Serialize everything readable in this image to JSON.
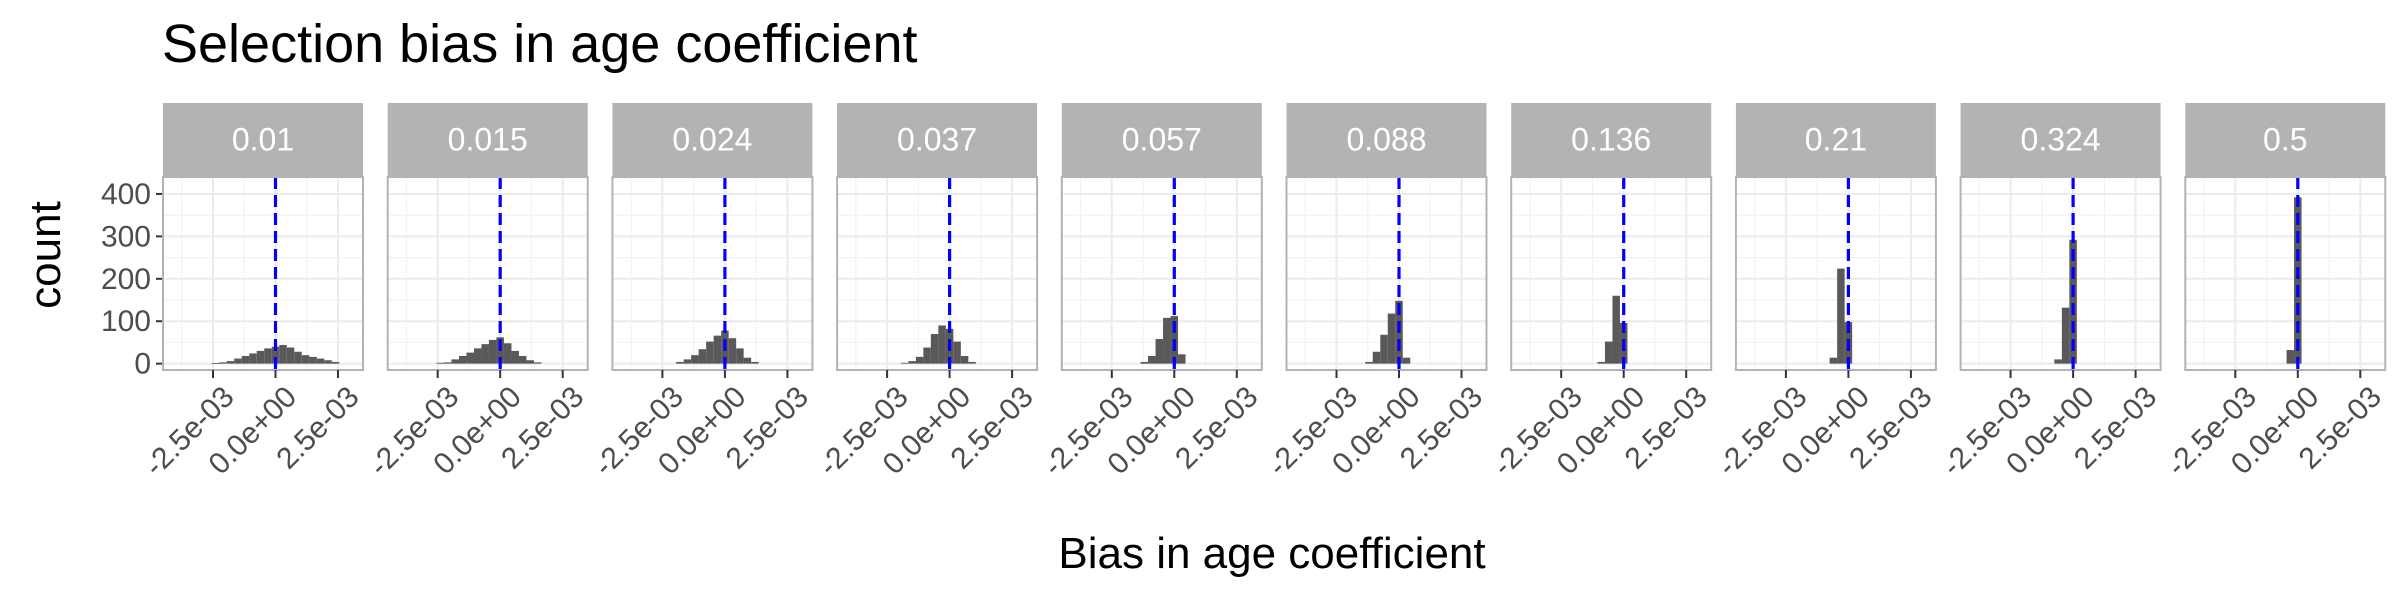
{
  "chart_data": {
    "type": "bar",
    "title": "Selection bias in age coefficient",
    "xlabel": "Bias in age coefficient",
    "ylabel": "count",
    "xlim": [
      -0.0045,
      0.0035
    ],
    "ylim": [
      -15,
      440
    ],
    "x_tick_values": [
      -0.0025,
      0.0,
      0.0025
    ],
    "x_tick_labels": [
      "-2.5e-03",
      "0.0e+00",
      "2.5e-03"
    ],
    "y_tick_values": [
      0,
      100,
      200,
      300,
      400
    ],
    "y_tick_labels": [
      "0",
      "100",
      "200",
      "300",
      "400"
    ],
    "bin_width": 0.0003,
    "reference_line": {
      "x": 0.0,
      "color": "#0000ff",
      "style": "dashed"
    },
    "colors": {
      "bar": "#595959",
      "strip": "#b3b3b3",
      "panel_border": "#b3b3b3",
      "grid": "#ebebeb"
    },
    "grid": true,
    "legend": "none",
    "panels": [
      {
        "label": "0.01",
        "x": [
          -0.0024,
          -0.0021,
          -0.0018,
          -0.0015,
          -0.0012,
          -0.0009,
          -0.0006,
          -0.0003,
          0.0,
          0.0003,
          0.0006,
          0.0009,
          0.0012,
          0.0015,
          0.0018,
          0.0021,
          0.0024
        ],
        "values": [
          1,
          3,
          6,
          12,
          18,
          24,
          30,
          36,
          40,
          44,
          38,
          28,
          20,
          16,
          12,
          8,
          4
        ]
      },
      {
        "label": "0.015",
        "x": [
          -0.0024,
          -0.0021,
          -0.0018,
          -0.0015,
          -0.0012,
          -0.0009,
          -0.0006,
          -0.0003,
          0.0,
          0.0003,
          0.0006,
          0.0009,
          0.0012,
          0.0015
        ],
        "values": [
          2,
          3,
          10,
          18,
          26,
          36,
          46,
          56,
          62,
          48,
          30,
          18,
          8,
          3
        ]
      },
      {
        "label": "0.024",
        "x": [
          -0.0018,
          -0.0015,
          -0.0012,
          -0.0009,
          -0.0006,
          -0.0003,
          0.0,
          0.0003,
          0.0006,
          0.0009,
          0.0012
        ],
        "values": [
          4,
          10,
          20,
          34,
          52,
          66,
          78,
          60,
          36,
          14,
          4
        ]
      },
      {
        "label": "0.037",
        "x": [
          -0.0018,
          -0.0015,
          -0.0012,
          -0.0009,
          -0.0006,
          -0.0003,
          0.0,
          0.0003,
          0.0006,
          0.0009
        ],
        "values": [
          2,
          6,
          16,
          38,
          70,
          90,
          82,
          52,
          18,
          4
        ]
      },
      {
        "label": "0.057",
        "x": [
          -0.0012,
          -0.0009,
          -0.0006,
          -0.0003,
          0.0,
          0.0003
        ],
        "values": [
          4,
          18,
          58,
          108,
          112,
          22
        ]
      },
      {
        "label": "0.088",
        "x": [
          -0.0012,
          -0.0009,
          -0.0006,
          -0.0003,
          0.0,
          0.0003
        ],
        "values": [
          4,
          28,
          68,
          118,
          148,
          14
        ]
      },
      {
        "label": "0.136",
        "x": [
          -0.0009,
          -0.0006,
          -0.0003,
          0.0
        ],
        "values": [
          4,
          52,
          160,
          96
        ]
      },
      {
        "label": "0.21",
        "x": [
          -0.0006,
          -0.0003,
          0.0
        ],
        "values": [
          14,
          224,
          98
        ]
      },
      {
        "label": "0.324",
        "x": [
          -0.0006,
          -0.0003,
          0.0
        ],
        "values": [
          10,
          132,
          292
        ]
      },
      {
        "label": "0.5",
        "x": [
          -0.0003,
          0.0
        ],
        "values": [
          32,
          392
        ]
      }
    ]
  }
}
